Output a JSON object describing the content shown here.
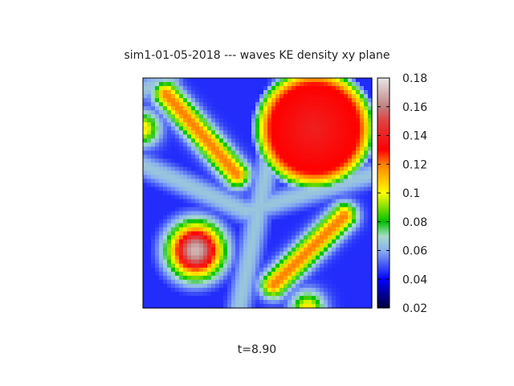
{
  "chart": {
    "title": "sim1-01-05-2018 --- waves KE density xy plane",
    "time_label": "t=8.90"
  },
  "chart_data": {
    "type": "heatmap",
    "title": "sim1-01-05-2018 --- waves KE density xy plane",
    "annotation": "t=8.90",
    "colorbar": {
      "range": [
        0.02,
        0.18
      ],
      "ticks": [
        0.02,
        0.04,
        0.06,
        0.08,
        0.1,
        0.12,
        0.14,
        0.16,
        0.18
      ],
      "tick_labels": [
        "0.02",
        "0.04",
        "0.06",
        "0.08",
        "0.1",
        "0.12",
        "0.14",
        "0.16",
        "0.18"
      ],
      "colormap": [
        {
          "v": 0.02,
          "color": "#00003a"
        },
        {
          "v": 0.04,
          "color": "#0000ff"
        },
        {
          "v": 0.06,
          "color": "#8ab0f0"
        },
        {
          "v": 0.07,
          "color": "#a8dcc8"
        },
        {
          "v": 0.08,
          "color": "#00c000"
        },
        {
          "v": 0.1,
          "color": "#ffff00"
        },
        {
          "v": 0.12,
          "color": "#ff8000"
        },
        {
          "v": 0.13,
          "color": "#ff0000"
        },
        {
          "v": 0.15,
          "color": "#e04040"
        },
        {
          "v": 0.16,
          "color": "#c08080"
        },
        {
          "v": 0.18,
          "color": "#e8e8e8"
        }
      ]
    },
    "features_description_domain_unit_square": {
      "background": 0.04,
      "ring_top_right": {
        "center": [
          0.75,
          0.78
        ],
        "value": 0.14,
        "edge_value": 0.08
      },
      "blob_bottom_left": {
        "center": [
          0.23,
          0.25
        ],
        "value": 0.17
      },
      "ridge_upper_left": {
        "value": 0.12
      },
      "ridge_lower_right": {
        "value": 0.12
      }
    },
    "grid": false,
    "axes_visible": false
  }
}
